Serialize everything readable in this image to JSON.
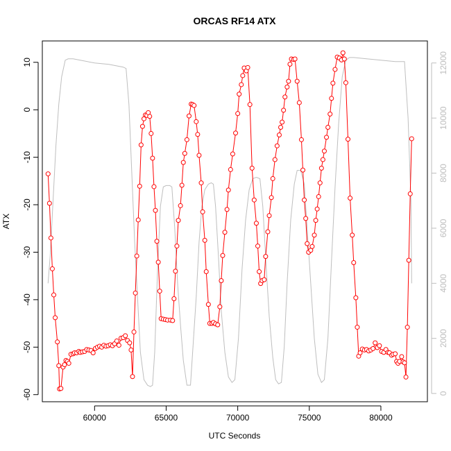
{
  "chart_data": {
    "type": "line",
    "title": "ORCAS RF14 ATX",
    "xlabel": "UTC Seconds",
    "ylabel": "ATX",
    "xlim": [
      56350,
      83250
    ],
    "ylim": [
      -61.5,
      14.5
    ],
    "y2lim": [
      -300,
      12800
    ],
    "x_ticks": [
      60000,
      65000,
      70000,
      75000,
      80000
    ],
    "y_ticks": [
      -60,
      -50,
      -40,
      -30,
      -20,
      -10,
      0,
      10
    ],
    "y2_ticks": [
      0,
      2000,
      4000,
      6000,
      8000,
      10000,
      12000
    ],
    "colors": {
      "atx": "#ff0000",
      "altitude": "#bebebe"
    },
    "series": [
      {
        "style": "points-and-lines",
        "color": "#ff0000",
        "points": [
          [
            56750,
            -13.5
          ],
          [
            56850,
            -19.7
          ],
          [
            56950,
            -27
          ],
          [
            57050,
            -33.5
          ],
          [
            57150,
            -39
          ],
          [
            57250,
            -43.8
          ],
          [
            57400,
            -48.9
          ],
          [
            57500,
            -53.9
          ],
          [
            57550,
            -58.8
          ],
          [
            57650,
            -58.7
          ],
          [
            57800,
            -54.2
          ],
          [
            57900,
            -53.7
          ],
          [
            58000,
            -52.8
          ],
          [
            58100,
            -53
          ],
          [
            58200,
            -53.4
          ],
          [
            58350,
            -51.5
          ],
          [
            58500,
            -51.4
          ],
          [
            58600,
            -51.2
          ],
          [
            58750,
            -51.2
          ],
          [
            58900,
            -50.9
          ],
          [
            59000,
            -51.1
          ],
          [
            59150,
            -51
          ],
          [
            59300,
            -50.9
          ],
          [
            59450,
            -50.5
          ],
          [
            59600,
            -50.6
          ],
          [
            59750,
            -50.7
          ],
          [
            59900,
            -51.2
          ],
          [
            60050,
            -50.3
          ],
          [
            60200,
            -50
          ],
          [
            60350,
            -49.8
          ],
          [
            60500,
            -50
          ],
          [
            60650,
            -49.6
          ],
          [
            60800,
            -49.8
          ],
          [
            60950,
            -49.7
          ],
          [
            61100,
            -49.5
          ],
          [
            61250,
            -49.7
          ],
          [
            61400,
            -49.3
          ],
          [
            61550,
            -48.7
          ],
          [
            61700,
            -49.6
          ],
          [
            61850,
            -48.1
          ],
          [
            62000,
            -48
          ],
          [
            62150,
            -47.6
          ],
          [
            62300,
            -48.6
          ],
          [
            62450,
            -49.1
          ],
          [
            62550,
            -50.6
          ],
          [
            62650,
            -56.2
          ],
          [
            62750,
            -46.8
          ],
          [
            62850,
            -38.6
          ],
          [
            62950,
            -30.8
          ],
          [
            63050,
            -23.2
          ],
          [
            63150,
            -16.1
          ],
          [
            63250,
            -7.4
          ],
          [
            63350,
            -3.5
          ],
          [
            63450,
            -1.9
          ],
          [
            63550,
            -1.1
          ],
          [
            63650,
            -1.2
          ],
          [
            63750,
            -0.6
          ],
          [
            63850,
            -1.4
          ],
          [
            63950,
            -5
          ],
          [
            64050,
            -10.2
          ],
          [
            64150,
            -16.2
          ],
          [
            64250,
            -21.2
          ],
          [
            64350,
            -27.7
          ],
          [
            64450,
            -32.1
          ],
          [
            64550,
            -38.2
          ],
          [
            64650,
            -44
          ],
          [
            64800,
            -44.1
          ],
          [
            64950,
            -44.2
          ],
          [
            65100,
            -44.3
          ],
          [
            65300,
            -44.3
          ],
          [
            65450,
            -44.4
          ],
          [
            65550,
            -39.8
          ],
          [
            65650,
            -34
          ],
          [
            65750,
            -28.7
          ],
          [
            65850,
            -23.3
          ],
          [
            66000,
            -20.2
          ],
          [
            66100,
            -15.9
          ],
          [
            66200,
            -11.1
          ],
          [
            66300,
            -9.2
          ],
          [
            66450,
            -6.3
          ],
          [
            66600,
            -1.3
          ],
          [
            66750,
            1.2
          ],
          [
            66850,
            1.1
          ],
          [
            66950,
            0.9
          ],
          [
            67100,
            -2.5
          ],
          [
            67200,
            -5.2
          ],
          [
            67300,
            -9.6
          ],
          [
            67450,
            -15.4
          ],
          [
            67550,
            -21.5
          ],
          [
            67700,
            -27.5
          ],
          [
            67800,
            -34.1
          ],
          [
            67950,
            -41
          ],
          [
            68050,
            -45
          ],
          [
            68200,
            -45
          ],
          [
            68300,
            -44.8
          ],
          [
            68450,
            -45.1
          ],
          [
            68600,
            -45.3
          ],
          [
            68750,
            -41.5
          ],
          [
            68850,
            -36
          ],
          [
            68950,
            -30.7
          ],
          [
            69100,
            -25.8
          ],
          [
            69250,
            -21
          ],
          [
            69350,
            -16.9
          ],
          [
            69500,
            -12.6
          ],
          [
            69650,
            -9.3
          ],
          [
            69850,
            -4.9
          ],
          [
            70000,
            -0.8
          ],
          [
            70100,
            3.3
          ],
          [
            70250,
            5.3
          ],
          [
            70350,
            7.2
          ],
          [
            70450,
            8.8
          ],
          [
            70600,
            8.2
          ],
          [
            70700,
            8.9
          ],
          [
            70850,
            1.1
          ],
          [
            71000,
            -12.3
          ],
          [
            71150,
            -19
          ],
          [
            71300,
            -23.9
          ],
          [
            71400,
            -28.7
          ],
          [
            71500,
            -34.1
          ],
          [
            71600,
            -36.6
          ],
          [
            71700,
            -36
          ],
          [
            71850,
            -35.8
          ],
          [
            71950,
            -30.9
          ],
          [
            72100,
            -25.7
          ],
          [
            72200,
            -22.3
          ],
          [
            72350,
            -18.5
          ],
          [
            72450,
            -14.5
          ],
          [
            72600,
            -10.5
          ],
          [
            72750,
            -7.6
          ],
          [
            72900,
            -5.3
          ],
          [
            73000,
            -3.7
          ],
          [
            73100,
            -2.6
          ],
          [
            73200,
            -0.1
          ],
          [
            73300,
            2.7
          ],
          [
            73450,
            4.8
          ],
          [
            73550,
            6
          ],
          [
            73650,
            9.6
          ],
          [
            73750,
            10.7
          ],
          [
            73900,
            10.6
          ],
          [
            74000,
            10.7
          ],
          [
            74150,
            6
          ],
          [
            74300,
            1.5
          ],
          [
            74450,
            -6.3
          ],
          [
            74550,
            -12.7
          ],
          [
            74650,
            -19
          ],
          [
            74750,
            -22.9
          ],
          [
            74850,
            -28.2
          ],
          [
            74950,
            -30
          ],
          [
            75100,
            -29.6
          ],
          [
            75200,
            -28.8
          ],
          [
            75350,
            -26.4
          ],
          [
            75450,
            -23.3
          ],
          [
            75550,
            -20.9
          ],
          [
            75650,
            -18.3
          ],
          [
            75750,
            -15.4
          ],
          [
            75850,
            -12.3
          ],
          [
            75950,
            -10.5
          ],
          [
            76050,
            -8.7
          ],
          [
            76200,
            -5.8
          ],
          [
            76300,
            -3.7
          ],
          [
            76450,
            -0.9
          ],
          [
            76550,
            2.4
          ],
          [
            76650,
            5.6
          ],
          [
            76800,
            8.5
          ],
          [
            76950,
            11.1
          ],
          [
            77100,
            10.9
          ],
          [
            77250,
            10.5
          ],
          [
            77350,
            12
          ],
          [
            77450,
            10.7
          ],
          [
            77550,
            5.7
          ],
          [
            77700,
            -6.2
          ],
          [
            77850,
            -18.6
          ],
          [
            78000,
            -26.4
          ],
          [
            78100,
            -32.2
          ],
          [
            78250,
            -39.6
          ],
          [
            78350,
            -45.8
          ],
          [
            78450,
            -51.9
          ],
          [
            78550,
            -51.2
          ],
          [
            78700,
            -50.4
          ],
          [
            78850,
            -50.6
          ],
          [
            79000,
            -50.5
          ],
          [
            79150,
            -50.8
          ],
          [
            79300,
            -50.6
          ],
          [
            79450,
            -50.3
          ],
          [
            79600,
            -49.1
          ],
          [
            79750,
            -50.1
          ],
          [
            79900,
            -49.7
          ],
          [
            80050,
            -50.9
          ],
          [
            80200,
            -51.1
          ],
          [
            80350,
            -50.5
          ],
          [
            80500,
            -51.1
          ],
          [
            80600,
            -51.2
          ],
          [
            80750,
            -51.7
          ],
          [
            80850,
            -51.5
          ],
          [
            81000,
            -51.4
          ],
          [
            81100,
            -53
          ],
          [
            81200,
            -53.4
          ],
          [
            81300,
            -53
          ],
          [
            81450,
            -52
          ],
          [
            81550,
            -53.1
          ],
          [
            81650,
            -53.3
          ],
          [
            81750,
            -56.3
          ],
          [
            81850,
            -45.8
          ],
          [
            81950,
            -31.7
          ],
          [
            82050,
            -17.7
          ],
          [
            82150,
            -6.1
          ]
        ]
      },
      {
        "style": "line",
        "color": "#bebebe",
        "axis": "right",
        "points": [
          [
            56750,
            4000
          ],
          [
            56900,
            5000
          ],
          [
            57050,
            6500
          ],
          [
            57300,
            9000
          ],
          [
            57500,
            10500
          ],
          [
            57700,
            11500
          ],
          [
            57950,
            12100
          ],
          [
            58150,
            12150
          ],
          [
            58500,
            12150
          ],
          [
            59000,
            12100
          ],
          [
            60000,
            12000
          ],
          [
            61000,
            11950
          ],
          [
            62000,
            11850
          ],
          [
            62200,
            11800
          ],
          [
            62400,
            10500
          ],
          [
            62600,
            8000
          ],
          [
            62800,
            5500
          ],
          [
            63000,
            3500
          ],
          [
            63200,
            1500
          ],
          [
            63450,
            500
          ],
          [
            63700,
            300
          ],
          [
            63900,
            250
          ],
          [
            64050,
            300
          ],
          [
            64200,
            1500
          ],
          [
            64400,
            4500
          ],
          [
            64600,
            6800
          ],
          [
            64800,
            7500
          ],
          [
            65000,
            7550
          ],
          [
            65250,
            7550
          ],
          [
            65400,
            7500
          ],
          [
            65600,
            6000
          ],
          [
            65800,
            4000
          ],
          [
            66000,
            2500
          ],
          [
            66200,
            1200
          ],
          [
            66450,
            300
          ],
          [
            66700,
            300
          ],
          [
            66850,
            1500
          ],
          [
            67100,
            3500
          ],
          [
            67300,
            5500
          ],
          [
            67500,
            6800
          ],
          [
            67700,
            7400
          ],
          [
            67950,
            7600
          ],
          [
            68150,
            7650
          ],
          [
            68300,
            7600
          ],
          [
            68450,
            6800
          ],
          [
            68650,
            5000
          ],
          [
            68850,
            3000
          ],
          [
            69100,
            1500
          ],
          [
            69350,
            600
          ],
          [
            69600,
            400
          ],
          [
            69800,
            500
          ],
          [
            70050,
            2000
          ],
          [
            70300,
            4500
          ],
          [
            70550,
            6300
          ],
          [
            70800,
            7400
          ],
          [
            71050,
            7800
          ],
          [
            71300,
            7850
          ],
          [
            71550,
            7800
          ],
          [
            71750,
            6800
          ],
          [
            72000,
            4500
          ],
          [
            72200,
            2800
          ],
          [
            72450,
            1300
          ],
          [
            72650,
            500
          ],
          [
            72850,
            350
          ],
          [
            73050,
            400
          ],
          [
            73250,
            1700
          ],
          [
            73450,
            4000
          ],
          [
            73700,
            6300
          ],
          [
            73950,
            7600
          ],
          [
            74150,
            8100
          ],
          [
            74400,
            8100
          ],
          [
            74650,
            7600
          ],
          [
            74850,
            6000
          ],
          [
            75100,
            4000
          ],
          [
            75350,
            2000
          ],
          [
            75600,
            700
          ],
          [
            75850,
            400
          ],
          [
            76050,
            500
          ],
          [
            76300,
            2000
          ],
          [
            76550,
            4800
          ],
          [
            76800,
            7500
          ],
          [
            77050,
            9800
          ],
          [
            77300,
            11500
          ],
          [
            77550,
            12100
          ],
          [
            77800,
            12200
          ],
          [
            78100,
            12200
          ],
          [
            79000,
            12150
          ],
          [
            80000,
            12100
          ],
          [
            81000,
            12050
          ],
          [
            81650,
            12050
          ],
          [
            81900,
            10000
          ],
          [
            82100,
            7000
          ],
          [
            82150,
            4000
          ]
        ]
      }
    ]
  }
}
